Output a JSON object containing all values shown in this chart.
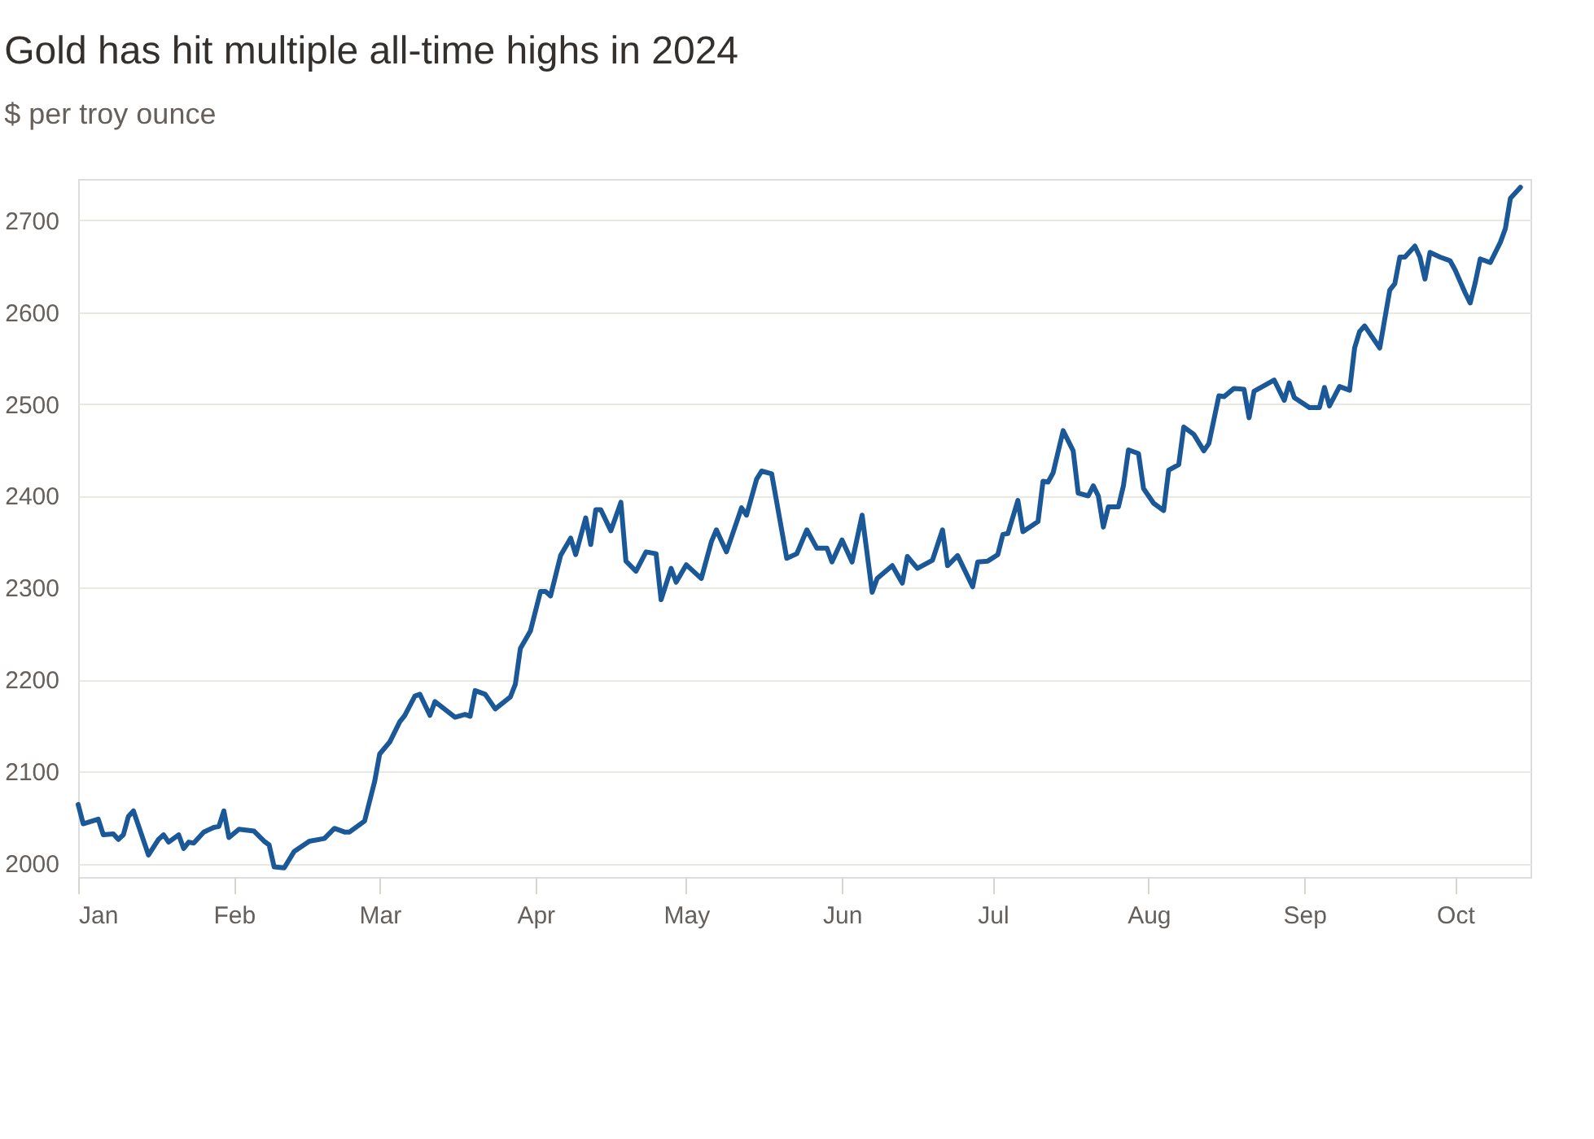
{
  "chart_data": {
    "type": "line",
    "title": "Gold has hit multiple all-time highs in 2024",
    "subtitle": "$ per troy ounce",
    "x": [
      "2024-01-01",
      "2024-01-02",
      "2024-01-05",
      "2024-01-06",
      "2024-01-08",
      "2024-01-09",
      "2024-01-10",
      "2024-01-11",
      "2024-01-12",
      "2024-01-15",
      "2024-01-17",
      "2024-01-18",
      "2024-01-19",
      "2024-01-21",
      "2024-01-22",
      "2024-01-23",
      "2024-01-24",
      "2024-01-26",
      "2024-01-28",
      "2024-01-29",
      "2024-01-30",
      "2024-01-31",
      "2024-02-02",
      "2024-02-05",
      "2024-02-07",
      "2024-02-08",
      "2024-02-09",
      "2024-02-11",
      "2024-02-13",
      "2024-02-16",
      "2024-02-19",
      "2024-02-21",
      "2024-02-23",
      "2024-02-24",
      "2024-02-27",
      "2024-02-29",
      "2024-03-01",
      "2024-03-03",
      "2024-03-05",
      "2024-03-06",
      "2024-03-08",
      "2024-03-09",
      "2024-03-11",
      "2024-03-12",
      "2024-03-16",
      "2024-03-18",
      "2024-03-19",
      "2024-03-20",
      "2024-03-22",
      "2024-03-24",
      "2024-03-27",
      "2024-03-28",
      "2024-03-29",
      "2024-03-31",
      "2024-04-02",
      "2024-04-03",
      "2024-04-04",
      "2024-04-06",
      "2024-04-08",
      "2024-04-09",
      "2024-04-11",
      "2024-04-12",
      "2024-04-13",
      "2024-04-14",
      "2024-04-16",
      "2024-04-18",
      "2024-04-19",
      "2024-04-21",
      "2024-04-23",
      "2024-04-25",
      "2024-04-26",
      "2024-04-28",
      "2024-04-29",
      "2024-05-01",
      "2024-05-04",
      "2024-05-06",
      "2024-05-07",
      "2024-05-09",
      "2024-05-12",
      "2024-05-13",
      "2024-05-15",
      "2024-05-16",
      "2024-05-18",
      "2024-05-21",
      "2024-05-23",
      "2024-05-25",
      "2024-05-27",
      "2024-05-29",
      "2024-05-30",
      "2024-06-01",
      "2024-06-03",
      "2024-06-05",
      "2024-06-07",
      "2024-06-08",
      "2024-06-11",
      "2024-06-13",
      "2024-06-14",
      "2024-06-16",
      "2024-06-19",
      "2024-06-21",
      "2024-06-22",
      "2024-06-24",
      "2024-06-27",
      "2024-06-28",
      "2024-06-30",
      "2024-07-02",
      "2024-07-03",
      "2024-07-04",
      "2024-07-06",
      "2024-07-07",
      "2024-07-10",
      "2024-07-11",
      "2024-07-12",
      "2024-07-13",
      "2024-07-15",
      "2024-07-17",
      "2024-07-18",
      "2024-07-20",
      "2024-07-21",
      "2024-07-22",
      "2024-07-23",
      "2024-07-24",
      "2024-07-26",
      "2024-07-27",
      "2024-07-28",
      "2024-07-30",
      "2024-07-31",
      "2024-08-02",
      "2024-08-04",
      "2024-08-05",
      "2024-08-07",
      "2024-08-08",
      "2024-08-10",
      "2024-08-12",
      "2024-08-13",
      "2024-08-15",
      "2024-08-16",
      "2024-08-18",
      "2024-08-20",
      "2024-08-21",
      "2024-08-22",
      "2024-08-26",
      "2024-08-28",
      "2024-08-29",
      "2024-08-30",
      "2024-09-02",
      "2024-09-04",
      "2024-09-05",
      "2024-09-06",
      "2024-09-08",
      "2024-09-10",
      "2024-09-11",
      "2024-09-12",
      "2024-09-13",
      "2024-09-16",
      "2024-09-18",
      "2024-09-19",
      "2024-09-20",
      "2024-09-21",
      "2024-09-23",
      "2024-09-24",
      "2024-09-25",
      "2024-09-26",
      "2024-09-28",
      "2024-09-30",
      "2024-10-01",
      "2024-10-03",
      "2024-10-04",
      "2024-10-05",
      "2024-10-06",
      "2024-10-08",
      "2024-10-10",
      "2024-10-11",
      "2024-10-12",
      "2024-10-14"
    ],
    "series": [
      {
        "color": "#1a5897",
        "values": [
          2064,
          2043,
          2048,
          2031,
          2032,
          2026,
          2031,
          2051,
          2057,
          2009,
          2026,
          2031,
          2023,
          2031,
          2016,
          2023,
          2022,
          2034,
          2039,
          2040,
          2057,
          2028,
          2037,
          2035,
          2024,
          2020,
          1996,
          1995,
          2013,
          2024,
          2027,
          2038,
          2034,
          2034,
          2046,
          2089,
          2119,
          2132,
          2154,
          2161,
          2182,
          2184,
          2161,
          2176,
          2159,
          2162,
          2160,
          2188,
          2184,
          2168,
          2181,
          2195,
          2234,
          2253,
          2296,
          2296,
          2291,
          2335,
          2354,
          2336,
          2376,
          2347,
          2385,
          2385,
          2362,
          2393,
          2329,
          2318,
          2339,
          2337,
          2287,
          2321,
          2306,
          2325,
          2310,
          2350,
          2363,
          2339,
          2387,
          2379,
          2418,
          2427,
          2424,
          2332,
          2337,
          2363,
          2343,
          2343,
          2328,
          2352,
          2328,
          2379,
          2295,
          2310,
          2324,
          2305,
          2334,
          2321,
          2330,
          2363,
          2324,
          2335,
          2301,
          2328,
          2329,
          2336,
          2358,
          2359,
          2395,
          2361,
          2372,
          2416,
          2415,
          2425,
          2471,
          2449,
          2403,
          2400,
          2411,
          2400,
          2366,
          2388,
          2388,
          2411,
          2450,
          2446,
          2408,
          2392,
          2384,
          2428,
          2434,
          2475,
          2467,
          2449,
          2457,
          2509,
          2508,
          2517,
          2516,
          2485,
          2514,
          2526,
          2504,
          2523,
          2507,
          2496,
          2496,
          2518,
          2498,
          2519,
          2515,
          2561,
          2579,
          2585,
          2561,
          2624,
          2631,
          2660,
          2660,
          2672,
          2660,
          2636,
          2665,
          2660,
          2656,
          2646,
          2621,
          2610,
          2632,
          2658,
          2654,
          2676,
          2691,
          2724,
          2736
        ]
      }
    ],
    "xlim": [
      "2024-01-01",
      "2024-10-16"
    ],
    "xticks": [
      {
        "value": "2024-01-01",
        "label": "Jan"
      },
      {
        "value": "2024-02-01",
        "label": "Feb"
      },
      {
        "value": "2024-03-01",
        "label": "Mar"
      },
      {
        "value": "2024-04-01",
        "label": "Apr"
      },
      {
        "value": "2024-05-01",
        "label": "May"
      },
      {
        "value": "2024-06-01",
        "label": "Jun"
      },
      {
        "value": "2024-07-01",
        "label": "Jul"
      },
      {
        "value": "2024-08-01",
        "label": "Aug"
      },
      {
        "value": "2024-09-01",
        "label": "Sep"
      },
      {
        "value": "2024-10-01",
        "label": "Oct"
      }
    ],
    "ylim": [
      1985,
      2745
    ],
    "yticks": [
      2000,
      2100,
      2200,
      2300,
      2400,
      2500,
      2600,
      2700
    ],
    "grid": "y",
    "line_style": "solid"
  }
}
